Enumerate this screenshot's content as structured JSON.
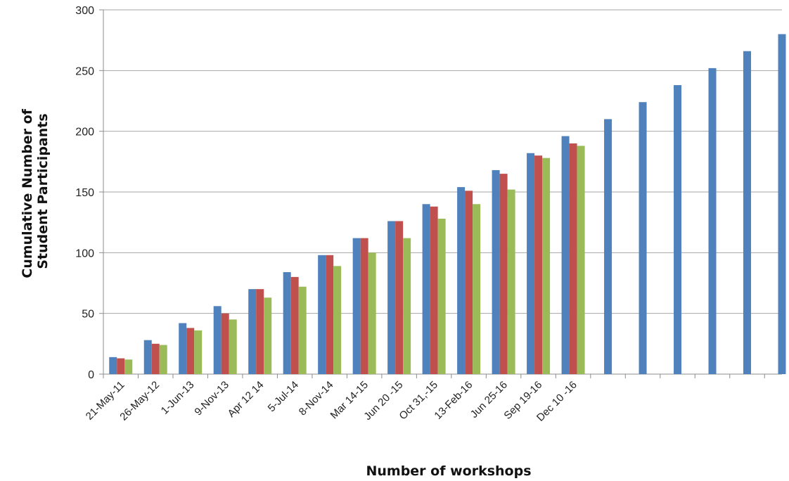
{
  "chart_data": {
    "type": "bar",
    "title": "",
    "xlabel": "Number of workshops",
    "ylabel": [
      "Cumulative Number of",
      "Student Participants"
    ],
    "ylim": [
      0,
      300
    ],
    "yticks": [
      0,
      50,
      100,
      150,
      200,
      250,
      300
    ],
    "grid": true,
    "legend": "none",
    "categories": [
      "21-May-11",
      "26-May-12",
      "1-Jun-13",
      "9-Nov-13",
      "Apr 12 14",
      "5-Jul-14",
      "8-Nov-14",
      "Mar 14-15",
      "Jun 20 -15",
      "Oct 31,-15",
      "13-Feb-16",
      "Jun 25-16",
      "Sep 19-16",
      "Dec 10 -16",
      "",
      "",
      "",
      "",
      "",
      ""
    ],
    "series": [
      {
        "color": "#4F81BD",
        "values": [
          14,
          28,
          42,
          56,
          70,
          84,
          98,
          112,
          126,
          140,
          154,
          168,
          182,
          196,
          210,
          224,
          238,
          252,
          266,
          280
        ]
      },
      {
        "color": "#C0504D",
        "values": [
          13,
          25,
          38,
          50,
          70,
          80,
          98,
          112,
          126,
          138,
          151,
          165,
          180,
          190,
          null,
          null,
          null,
          null,
          null,
          null
        ]
      },
      {
        "color": "#9BBB59",
        "values": [
          12,
          24,
          36,
          45,
          63,
          72,
          89,
          100,
          112,
          128,
          140,
          152,
          178,
          188,
          null,
          null,
          null,
          null,
          null,
          null
        ]
      }
    ]
  }
}
